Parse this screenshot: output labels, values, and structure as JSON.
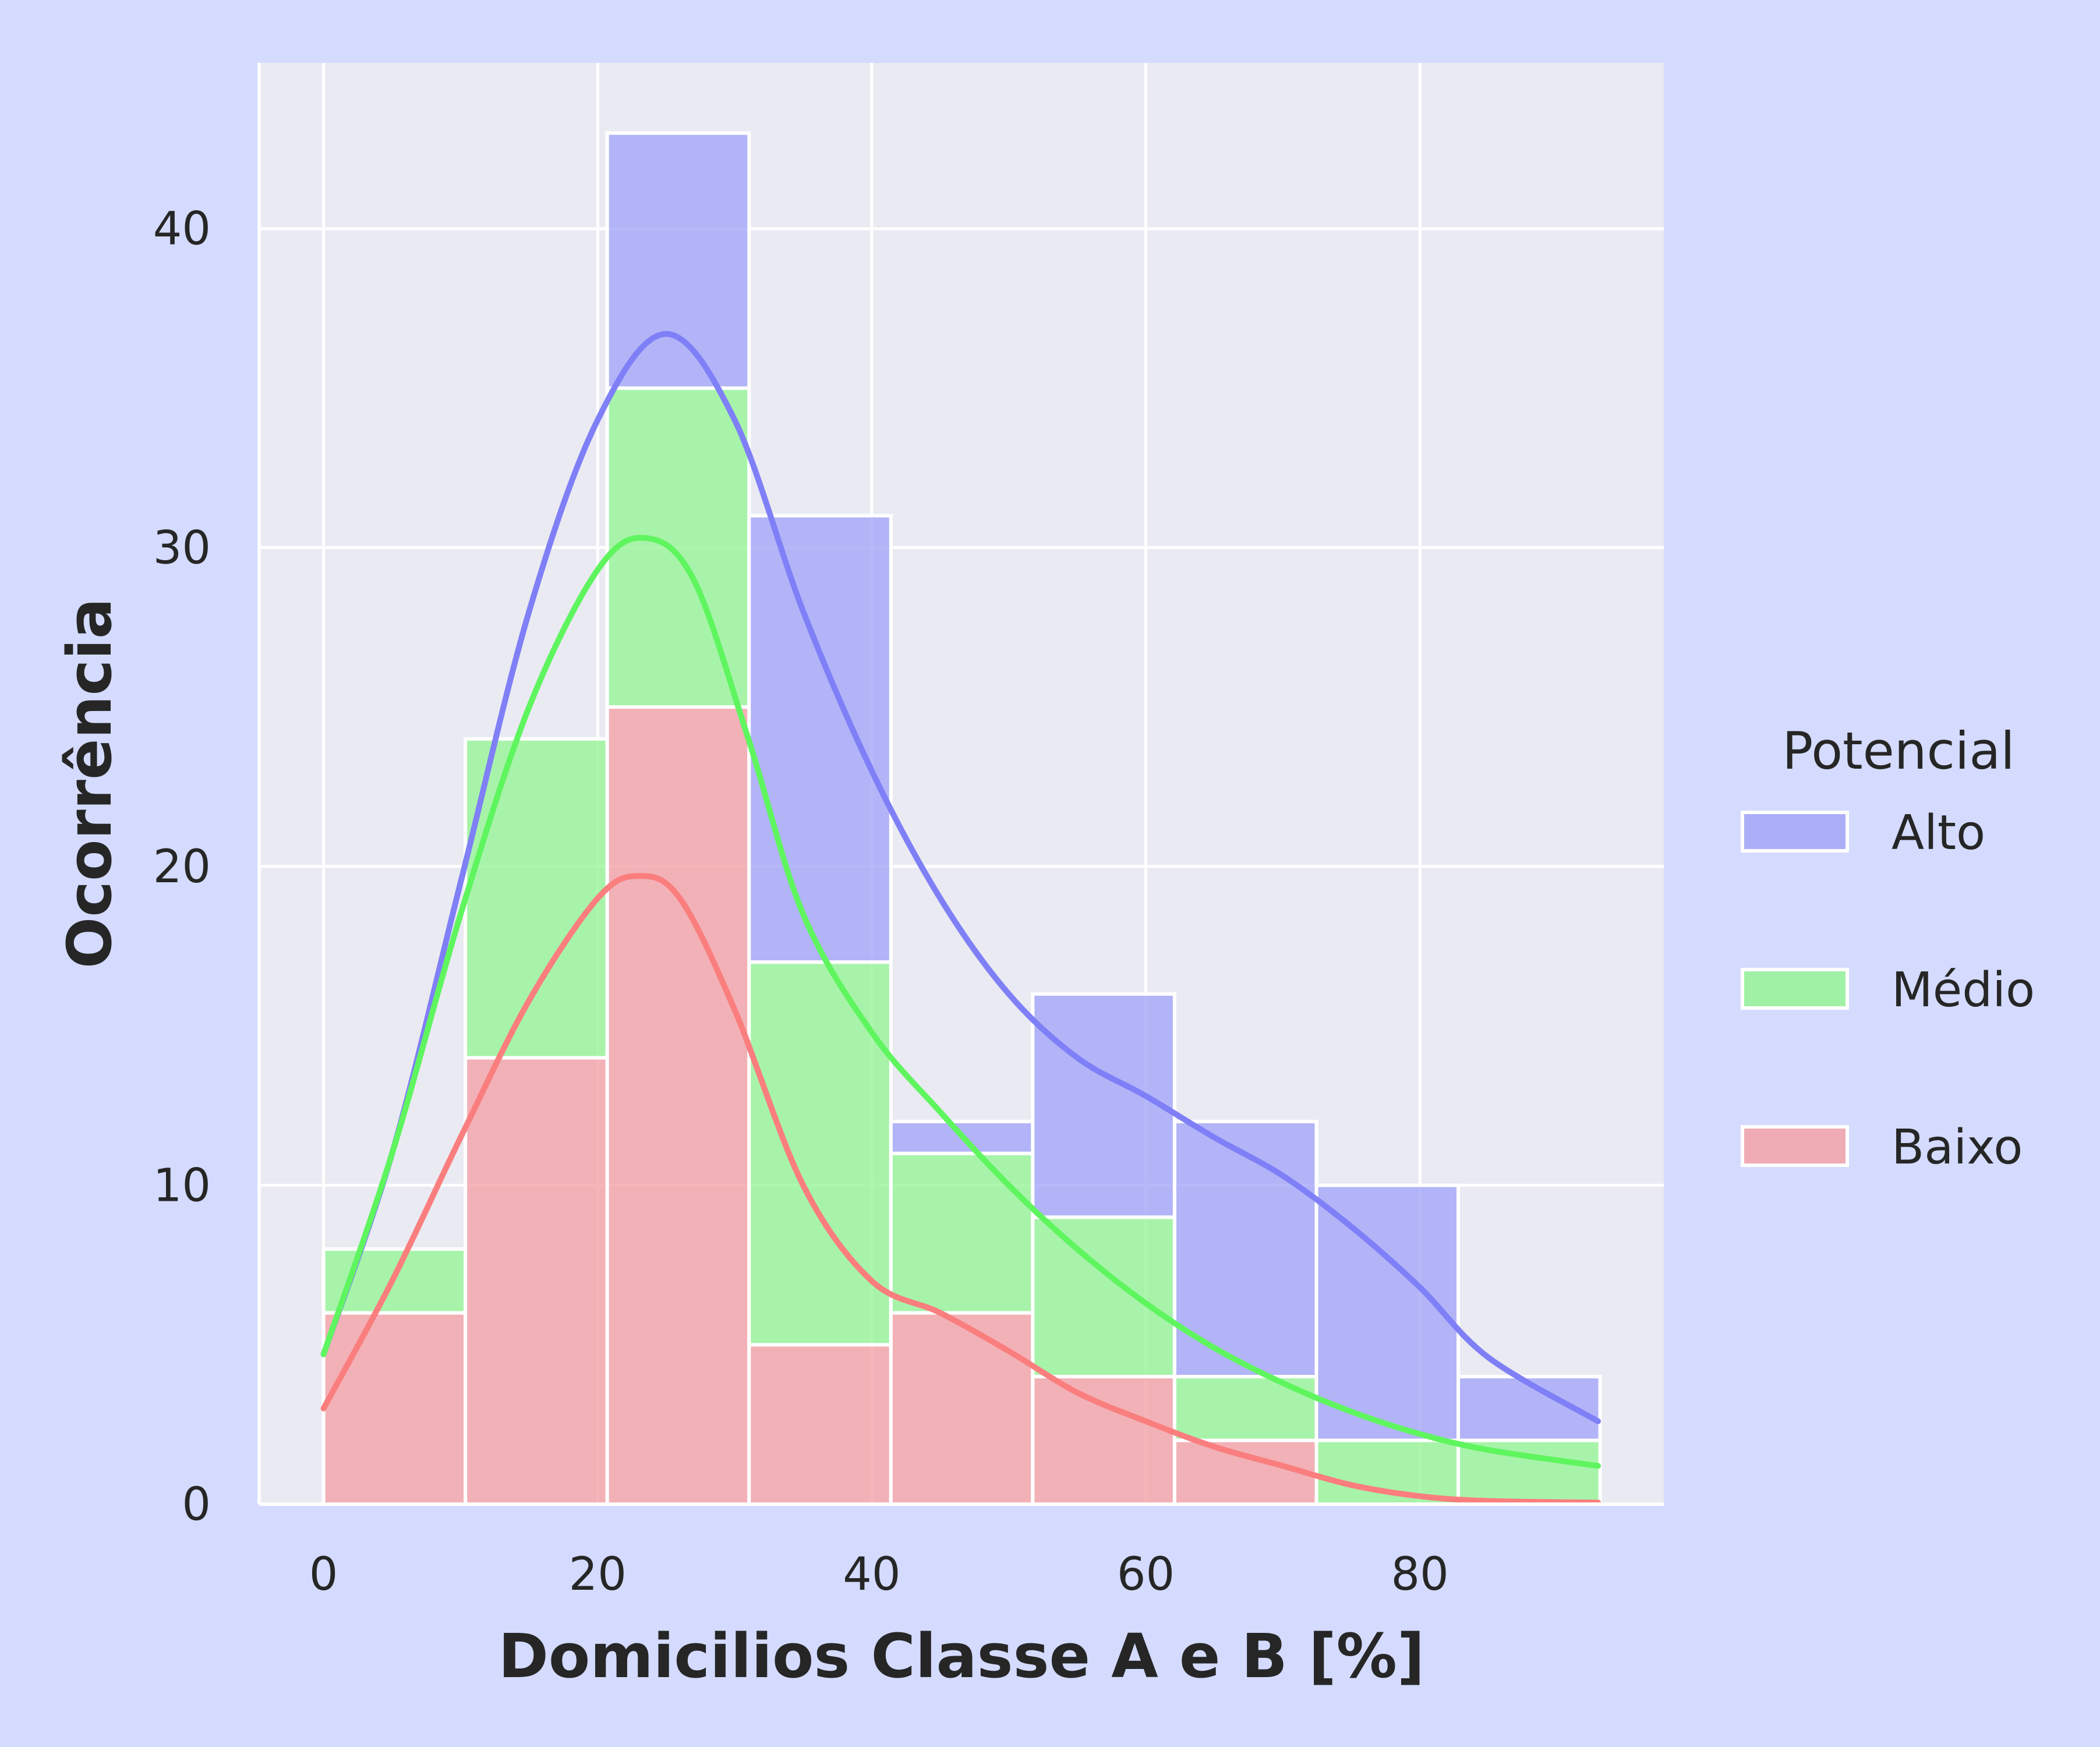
{
  "chart_data": {
    "type": "bar",
    "stacked": true,
    "xlabel": "Domicilios Classe A e B [%]",
    "ylabel": "Ocorrência",
    "xlim": [
      -4.7,
      97.8
    ],
    "ylim": [
      0,
      45.2
    ],
    "xticks": [
      0,
      20,
      40,
      60,
      80
    ],
    "yticks": [
      0,
      10,
      20,
      30,
      40
    ],
    "grid": true,
    "bin_edges": [
      0,
      10.35,
      20.7,
      31.05,
      41.4,
      51.75,
      62.1,
      72.45,
      82.8,
      93.15
    ],
    "legend": {
      "title": "Potencial",
      "placement": "right"
    },
    "series": [
      {
        "name": "Baixo",
        "color": "#f4a3a8",
        "values": [
          6,
          14,
          25,
          5,
          6,
          4,
          2,
          0,
          0
        ]
      },
      {
        "name": "Médio",
        "color": "#97f597",
        "values": [
          2,
          10,
          10,
          12,
          5,
          5,
          2,
          2,
          2
        ]
      },
      {
        "name": "Alto",
        "color": "#a4a6f7",
        "values": [
          0,
          0,
          8,
          14,
          1,
          7,
          8,
          8,
          2
        ]
      }
    ],
    "kde": [
      {
        "name": "Alto",
        "color": "#7f7ff7",
        "points": [
          [
            0,
            4.7
          ],
          [
            5,
            11
          ],
          [
            10,
            19.5
          ],
          [
            15,
            28
          ],
          [
            20,
            34
          ],
          [
            25,
            36.7
          ],
          [
            30,
            34
          ],
          [
            35,
            28
          ],
          [
            40,
            23
          ],
          [
            45,
            19
          ],
          [
            50,
            16
          ],
          [
            55,
            14
          ],
          [
            60,
            12.8
          ],
          [
            65,
            11.5
          ],
          [
            70,
            10.3
          ],
          [
            75,
            8.7
          ],
          [
            80,
            6.8
          ],
          [
            85,
            4.6
          ],
          [
            93,
            2.6
          ]
        ]
      },
      {
        "name": "Médio",
        "color": "#5ff55f",
        "points": [
          [
            0,
            4.7
          ],
          [
            5,
            11
          ],
          [
            10,
            18.5
          ],
          [
            15,
            25
          ],
          [
            20,
            29.3
          ],
          [
            23.5,
            30.3
          ],
          [
            27,
            29
          ],
          [
            31,
            24
          ],
          [
            35,
            18.5
          ],
          [
            40,
            14.8
          ],
          [
            45,
            12.3
          ],
          [
            50,
            10
          ],
          [
            55,
            8
          ],
          [
            60,
            6.3
          ],
          [
            65,
            4.9
          ],
          [
            70,
            3.8
          ],
          [
            75,
            2.9
          ],
          [
            80,
            2.2
          ],
          [
            85,
            1.7
          ],
          [
            93,
            1.2
          ]
        ]
      },
      {
        "name": "Baixo",
        "color": "#fa7e7e",
        "points": [
          [
            0,
            3
          ],
          [
            5,
            7
          ],
          [
            10,
            11.5
          ],
          [
            15,
            15.8
          ],
          [
            20,
            19
          ],
          [
            23,
            19.7
          ],
          [
            26,
            19
          ],
          [
            30,
            15.5
          ],
          [
            35,
            10
          ],
          [
            40,
            7
          ],
          [
            45,
            6
          ],
          [
            50,
            4.8
          ],
          [
            55,
            3.5
          ],
          [
            60,
            2.6
          ],
          [
            65,
            1.8
          ],
          [
            70,
            1.2
          ],
          [
            75,
            0.6
          ],
          [
            80,
            0.25
          ],
          [
            85,
            0.1
          ],
          [
            93,
            0.05
          ]
        ]
      }
    ]
  }
}
